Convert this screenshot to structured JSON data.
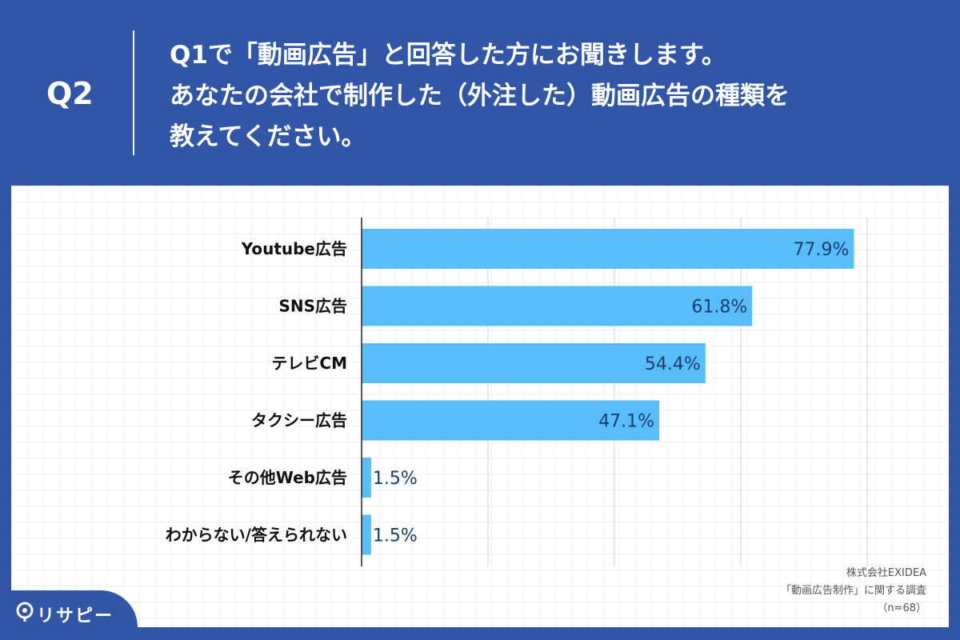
{
  "header": {
    "q_label": "Q2",
    "question_lines": [
      "Q1で「動画広告」と回答した方にお聞きします。",
      "あなたの会社で制作した（外注した）動画広告の種類を",
      "教えてください。"
    ]
  },
  "chart_data": {
    "type": "bar",
    "orientation": "horizontal",
    "categories": [
      "Youtube広告",
      "SNS広告",
      "テレビCM",
      "タクシー広告",
      "その他Web広告",
      "わからない/答えられない"
    ],
    "values": [
      77.9,
      61.8,
      54.4,
      47.1,
      1.5,
      1.5
    ],
    "value_labels": [
      "77.9%",
      "61.8%",
      "54.4%",
      "47.1%",
      "1.5%",
      "1.5%"
    ],
    "xlim": [
      0,
      80
    ],
    "grid": true,
    "bar_color": "#57bdfb"
  },
  "source": {
    "lines": [
      "株式会社EXIDEA",
      "「動画広告制作」に関する調査",
      "（n=68）"
    ]
  },
  "brand": {
    "name": "リサピー"
  },
  "colors": {
    "background": "#3156a8",
    "panel": "#ffffff",
    "bar": "#57bdfb"
  }
}
